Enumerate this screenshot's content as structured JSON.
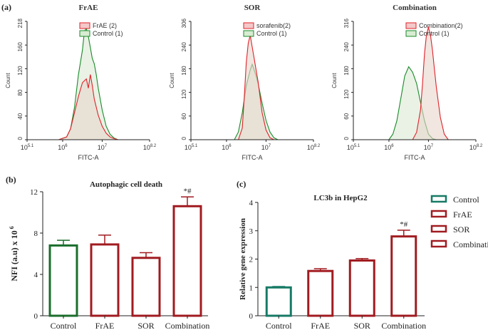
{
  "colors": {
    "green": "#1a8a2a",
    "red": "#e0222a",
    "fill_beige": "#e8d6cc",
    "bar_green": "#1b6e2c",
    "bar_red": "#a11b20",
    "teal": "#177a66",
    "axis": "#222222"
  },
  "chart_data": [
    {
      "panel": "(a)",
      "type": "area",
      "title": "FrAE",
      "xlabel": "FITC-A",
      "ylabel": "Count",
      "xscale": "log",
      "xlim_log10": [
        5.1,
        8.2
      ],
      "ylim": [
        0,
        218
      ],
      "yticks": [
        "0",
        "40",
        "80",
        "120",
        "160",
        "218"
      ],
      "xticks": [
        {
          "base": "10",
          "exp": "5.1"
        },
        {
          "base": "10",
          "exp": "6"
        },
        {
          "base": "10",
          "exp": "7"
        },
        {
          "base": "10",
          "exp": "8.2"
        }
      ],
      "legend": [
        "FrAE (2)",
        "Control (1)"
      ],
      "series": [
        {
          "name": "FrAE (2)",
          "color": "red",
          "x_log10": [
            5.9,
            6.1,
            6.2,
            6.3,
            6.4,
            6.5,
            6.6,
            6.65,
            6.7,
            6.75,
            6.8,
            6.85,
            6.9,
            7.0,
            7.1,
            7.2,
            7.3,
            7.4
          ],
          "y": [
            0,
            5,
            20,
            50,
            80,
            105,
            112,
            95,
            120,
            100,
            75,
            60,
            45,
            25,
            12,
            5,
            2,
            0
          ]
        },
        {
          "name": "Control (1)",
          "color": "green",
          "x_log10": [
            5.9,
            6.1,
            6.2,
            6.3,
            6.4,
            6.5,
            6.55,
            6.6,
            6.65,
            6.7,
            6.75,
            6.8,
            6.85,
            6.9,
            7.0,
            7.1,
            7.2,
            7.3,
            7.4
          ],
          "y": [
            0,
            5,
            20,
            60,
            120,
            165,
            200,
            205,
            190,
            170,
            150,
            140,
            120,
            95,
            55,
            25,
            10,
            3,
            0
          ]
        }
      ]
    },
    {
      "panel": "(a)",
      "type": "area",
      "title": "SOR",
      "xlabel": "FITC-A",
      "ylabel": "Count",
      "xscale": "log",
      "xlim_log10": [
        5.1,
        8.2
      ],
      "ylim": [
        0,
        306
      ],
      "yticks": [
        "0",
        "60",
        "120",
        "180",
        "240",
        "306"
      ],
      "xticks": [
        {
          "base": "10",
          "exp": "5.1"
        },
        {
          "base": "10",
          "exp": "6"
        },
        {
          "base": "10",
          "exp": "7"
        },
        {
          "base": "10",
          "exp": "8.2"
        }
      ],
      "legend": [
        "sorafenib(2)",
        "Control (1)"
      ],
      "series": [
        {
          "name": "sorafenib(2)",
          "color": "red",
          "x_log10": [
            6.3,
            6.4,
            6.45,
            6.5,
            6.55,
            6.6,
            6.65,
            6.7,
            6.75,
            6.8,
            6.85,
            6.9,
            7.0,
            7.1,
            7.2
          ],
          "y": [
            0,
            30,
            110,
            200,
            250,
            270,
            240,
            210,
            180,
            150,
            110,
            70,
            25,
            5,
            0
          ]
        },
        {
          "name": "Control (1)",
          "color": "green",
          "x_log10": [
            6.2,
            6.3,
            6.4,
            6.5,
            6.6,
            6.65,
            6.7,
            6.75,
            6.8,
            6.85,
            6.9,
            7.0,
            7.1,
            7.2,
            7.3
          ],
          "y": [
            0,
            20,
            70,
            140,
            180,
            195,
            180,
            165,
            145,
            120,
            95,
            50,
            20,
            5,
            0
          ]
        }
      ]
    },
    {
      "panel": "(a)",
      "type": "area",
      "title": "Combination",
      "xlabel": "FITC-A",
      "ylabel": "Count",
      "xscale": "log",
      "xlim_log10": [
        5.1,
        8.2
      ],
      "ylim": [
        0,
        316
      ],
      "yticks": [
        "0",
        "60",
        "120",
        "180",
        "240",
        "316"
      ],
      "xticks": [
        {
          "base": "10",
          "exp": "5.1"
        },
        {
          "base": "10",
          "exp": "6"
        },
        {
          "base": "10",
          "exp": "7"
        },
        {
          "base": "10",
          "exp": "8.2"
        }
      ],
      "legend": [
        "Combination(2)",
        "Control (1)"
      ],
      "series": [
        {
          "name": "Combination(2)",
          "color": "red",
          "x_log10": [
            6.6,
            6.7,
            6.8,
            6.85,
            6.9,
            6.95,
            7.0,
            7.05,
            7.1,
            7.15,
            7.2,
            7.3,
            7.4,
            7.5
          ],
          "y": [
            0,
            20,
            80,
            150,
            230,
            280,
            300,
            280,
            240,
            190,
            140,
            60,
            15,
            0
          ]
        },
        {
          "name": "Control (1)",
          "color": "green",
          "x_log10": [
            6.0,
            6.1,
            6.2,
            6.3,
            6.4,
            6.5,
            6.6,
            6.7,
            6.8,
            6.9,
            7.0,
            7.1,
            7.2
          ],
          "y": [
            0,
            15,
            50,
            110,
            170,
            195,
            180,
            150,
            100,
            50,
            15,
            3,
            0
          ]
        }
      ]
    },
    {
      "panel": "(b)",
      "type": "bar",
      "title": "Autophagic cell death",
      "ylabel": "NFI (a.u) x 10",
      "ylabel_exp": "6",
      "ylim": [
        0,
        12
      ],
      "yticks": [
        "0",
        "4",
        "8",
        "12"
      ],
      "categories": [
        "Control",
        "FrAE",
        "SOR",
        "Combination"
      ],
      "values": [
        6.8,
        6.9,
        5.6,
        10.6
      ],
      "errors": [
        0.5,
        0.9,
        0.5,
        0.9
      ],
      "bar_colors": [
        "bar_green",
        "bar_red",
        "bar_red",
        "bar_red"
      ],
      "annotations": [
        "",
        "",
        "",
        "*#"
      ]
    },
    {
      "panel": "(c)",
      "type": "bar",
      "title": "LC3b in HepG2",
      "ylabel": "Relative gene expression",
      "ylim": [
        0,
        4
      ],
      "yticks": [
        "0",
        "1",
        "2",
        "3",
        "4"
      ],
      "categories": [
        "Control",
        "FrAE",
        "SOR",
        "Combination"
      ],
      "values": [
        1.0,
        1.58,
        1.95,
        2.8
      ],
      "errors": [
        0.03,
        0.08,
        0.07,
        0.22
      ],
      "bar_colors": [
        "teal",
        "bar_red",
        "bar_red",
        "bar_red"
      ],
      "annotations": [
        "",
        "",
        "",
        "*#"
      ],
      "legend": [
        "Control",
        "FrAE",
        "SOR",
        "Combination"
      ]
    }
  ],
  "labels": {
    "panel_a": "(a)",
    "panel_b": "(b)",
    "panel_c": "(c)"
  }
}
